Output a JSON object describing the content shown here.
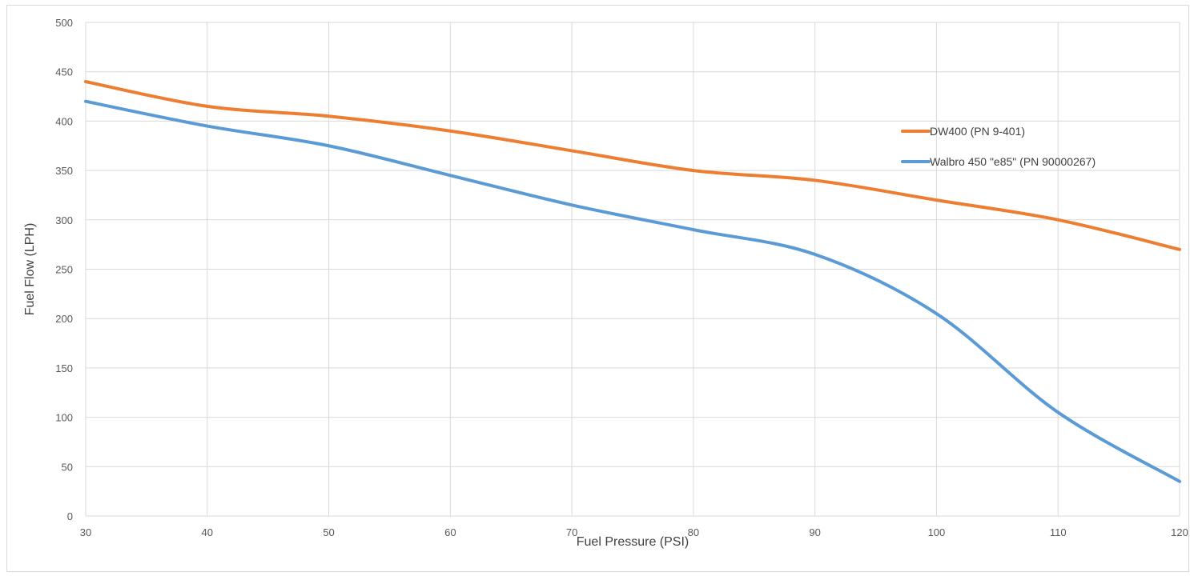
{
  "chart_data": {
    "type": "line",
    "xlabel": "Fuel Pressure (PSI)",
    "ylabel": "Fuel Flow (LPH)",
    "xlim": [
      30,
      120
    ],
    "ylim": [
      0,
      500
    ],
    "x_ticks": [
      30,
      40,
      50,
      60,
      70,
      80,
      90,
      100,
      110,
      120
    ],
    "y_ticks": [
      0,
      50,
      100,
      150,
      200,
      250,
      300,
      350,
      400,
      450,
      500
    ],
    "grid": true,
    "legend_position": "right",
    "series": [
      {
        "name": "DW400 (PN 9-401)",
        "color": "#ED7D31",
        "x": [
          30,
          40,
          50,
          60,
          70,
          80,
          90,
          100,
          110,
          120
        ],
        "values": [
          440,
          415,
          405,
          390,
          370,
          350,
          340,
          320,
          300,
          270
        ]
      },
      {
        "name": "Walbro 450 \"e85\" (PN 90000267)",
        "color": "#5B9BD5",
        "x": [
          30,
          40,
          50,
          60,
          70,
          80,
          90,
          100,
          110,
          120
        ],
        "values": [
          420,
          395,
          375,
          345,
          315,
          290,
          265,
          205,
          105,
          35
        ]
      }
    ]
  }
}
